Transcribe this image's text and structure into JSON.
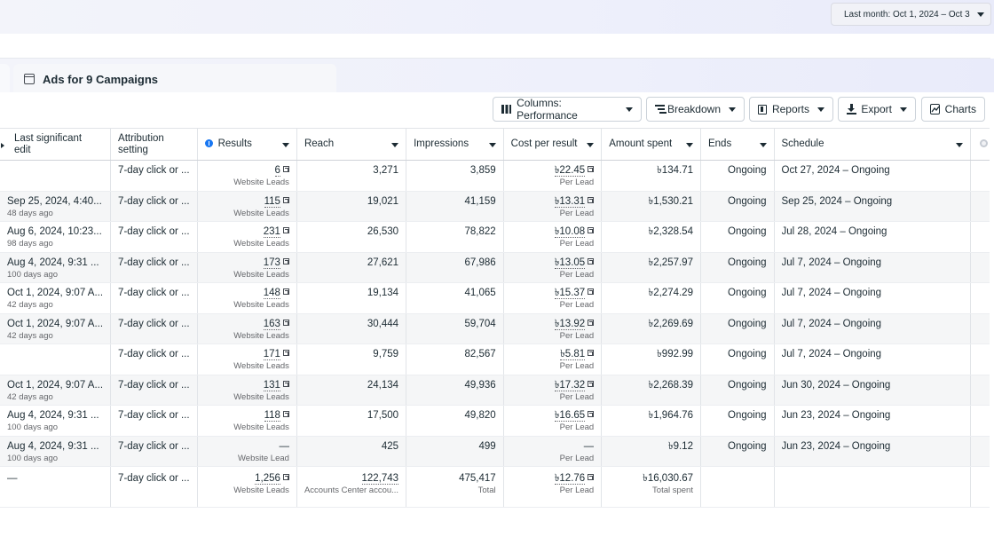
{
  "date_range": {
    "label": "Last month: Oct 1, 2024 – Oct 3"
  },
  "tab": {
    "label": "Ads for 9 Campaigns"
  },
  "toolbar": {
    "columns": "Columns: Performance",
    "breakdown": "Breakdown",
    "reports": "Reports",
    "export": "Export",
    "charts": "Charts"
  },
  "columns": {
    "last_edit": "Last significant edit",
    "attribution": "Attribution setting",
    "results": "Results",
    "reach": "Reach",
    "impressions": "Impressions",
    "cost_per_result": "Cost per result",
    "amount_spent": "Amount spent",
    "ends": "Ends",
    "schedule": "Schedule"
  },
  "rows": [
    {
      "edit": "",
      "edit_sub": "",
      "attribution": "7-day click or ...",
      "results": "6",
      "results_sub": "Website Leads",
      "reach": "3,271",
      "impressions": "3,859",
      "cpr": "৳22.45",
      "cpr_sub": "Per Lead",
      "spent": "৳134.71",
      "ends": "Ongoing",
      "schedule": "Oct 27, 2024 – Ongoing"
    },
    {
      "edit": "Sep 25, 2024, 4:40...",
      "edit_sub": "48 days ago",
      "attribution": "7-day click or ...",
      "results": "115",
      "results_sub": "Website Leads",
      "reach": "19,021",
      "impressions": "41,159",
      "cpr": "৳13.31",
      "cpr_sub": "Per Lead",
      "spent": "৳1,530.21",
      "ends": "Ongoing",
      "schedule": "Sep 25, 2024 – Ongoing"
    },
    {
      "edit": "Aug 6, 2024, 10:23...",
      "edit_sub": "98 days ago",
      "attribution": "7-day click or ...",
      "results": "231",
      "results_sub": "Website Leads",
      "reach": "26,530",
      "impressions": "78,822",
      "cpr": "৳10.08",
      "cpr_sub": "Per Lead",
      "spent": "৳2,328.54",
      "ends": "Ongoing",
      "schedule": "Jul 28, 2024 – Ongoing"
    },
    {
      "edit": "Aug 4, 2024, 9:31 ...",
      "edit_sub": "100 days ago",
      "attribution": "7-day click or ...",
      "results": "173",
      "results_sub": "Website Leads",
      "reach": "27,621",
      "impressions": "67,986",
      "cpr": "৳13.05",
      "cpr_sub": "Per Lead",
      "spent": "৳2,257.97",
      "ends": "Ongoing",
      "schedule": "Jul 7, 2024 – Ongoing"
    },
    {
      "edit": "Oct 1, 2024, 9:07 A...",
      "edit_sub": "42 days ago",
      "attribution": "7-day click or ...",
      "results": "148",
      "results_sub": "Website Leads",
      "reach": "19,134",
      "impressions": "41,065",
      "cpr": "৳15.37",
      "cpr_sub": "Per Lead",
      "spent": "৳2,274.29",
      "ends": "Ongoing",
      "schedule": "Jul 7, 2024 – Ongoing"
    },
    {
      "edit": "Oct 1, 2024, 9:07 A...",
      "edit_sub": "42 days ago",
      "attribution": "7-day click or ...",
      "results": "163",
      "results_sub": "Website Leads",
      "reach": "30,444",
      "impressions": "59,704",
      "cpr": "৳13.92",
      "cpr_sub": "Per Lead",
      "spent": "৳2,269.69",
      "ends": "Ongoing",
      "schedule": "Jul 7, 2024 – Ongoing"
    },
    {
      "edit": "",
      "edit_sub": "",
      "attribution": "7-day click or ...",
      "results": "171",
      "results_sub": "Website Leads",
      "reach": "9,759",
      "impressions": "82,567",
      "cpr": "৳5.81",
      "cpr_sub": "Per Lead",
      "spent": "৳992.99",
      "ends": "Ongoing",
      "schedule": "Jul 7, 2024 – Ongoing"
    },
    {
      "edit": "Oct 1, 2024, 9:07 A...",
      "edit_sub": "42 days ago",
      "attribution": "7-day click or ...",
      "results": "131",
      "results_sub": "Website Leads",
      "reach": "24,134",
      "impressions": "49,936",
      "cpr": "৳17.32",
      "cpr_sub": "Per Lead",
      "spent": "৳2,268.39",
      "ends": "Ongoing",
      "schedule": "Jun 30, 2024 – Ongoing"
    },
    {
      "edit": "Aug 4, 2024, 9:31 ...",
      "edit_sub": "100 days ago",
      "attribution": "7-day click or ...",
      "results": "118",
      "results_sub": "Website Leads",
      "reach": "17,500",
      "impressions": "49,820",
      "cpr": "৳16.65",
      "cpr_sub": "Per Lead",
      "spent": "৳1,964.76",
      "ends": "Ongoing",
      "schedule": "Jun 23, 2024 – Ongoing"
    },
    {
      "edit": "Aug 4, 2024, 9:31 ...",
      "edit_sub": "100 days ago",
      "attribution": "7-day click or ...",
      "results": "—",
      "results_sub": "Website Lead",
      "reach": "425",
      "impressions": "499",
      "cpr": "—",
      "cpr_sub": "Per Lead",
      "spent": "৳9.12",
      "ends": "Ongoing",
      "schedule": "Jun 23, 2024 – Ongoing"
    }
  ],
  "totals": {
    "edit": "—",
    "attribution": "7-day click or ...",
    "results": "1,256",
    "results_sub": "Website Leads",
    "reach": "122,743",
    "reach_sub": "Accounts Center accou...",
    "impressions": "475,417",
    "impressions_sub": "Total",
    "cpr": "৳12.76",
    "cpr_sub": "Per Lead",
    "spent": "৳16,030.67",
    "spent_sub": "Total spent"
  },
  "colors": {
    "accent": "#1877f2",
    "text": "#1c2b33",
    "muted": "#65676b"
  },
  "icons": [
    "caret-down-icon",
    "ad-tab-icon",
    "columns-icon",
    "breakdown-icon",
    "reports-icon",
    "export-icon",
    "charts-icon",
    "info-icon",
    "external-link-icon",
    "add-column-icon"
  ]
}
